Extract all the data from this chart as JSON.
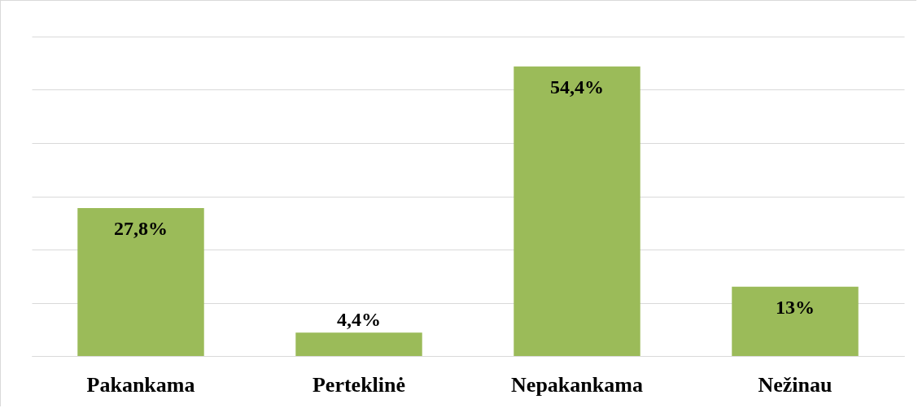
{
  "chart_data": {
    "type": "bar",
    "categories": [
      "Pakankama",
      "Perteklinė",
      "Nepakankama",
      "Nežinau"
    ],
    "values": [
      27.8,
      4.4,
      54.4,
      13
    ],
    "value_labels": [
      "27,8%",
      "4,4%",
      "54,4%",
      "13%"
    ],
    "color": "#9bbb59",
    "ylim": [
      0,
      60
    ],
    "yticks": [
      {
        "value": 0,
        "label": null
      },
      {
        "value": 10,
        "label": null
      },
      {
        "value": 20,
        "label": null
      },
      {
        "value": 30,
        "label": null
      },
      {
        "value": 40,
        "label": null
      },
      {
        "value": 50,
        "label": null
      },
      {
        "value": 60,
        "label": null
      }
    ],
    "grid": "y",
    "tick_labels": "x"
  }
}
